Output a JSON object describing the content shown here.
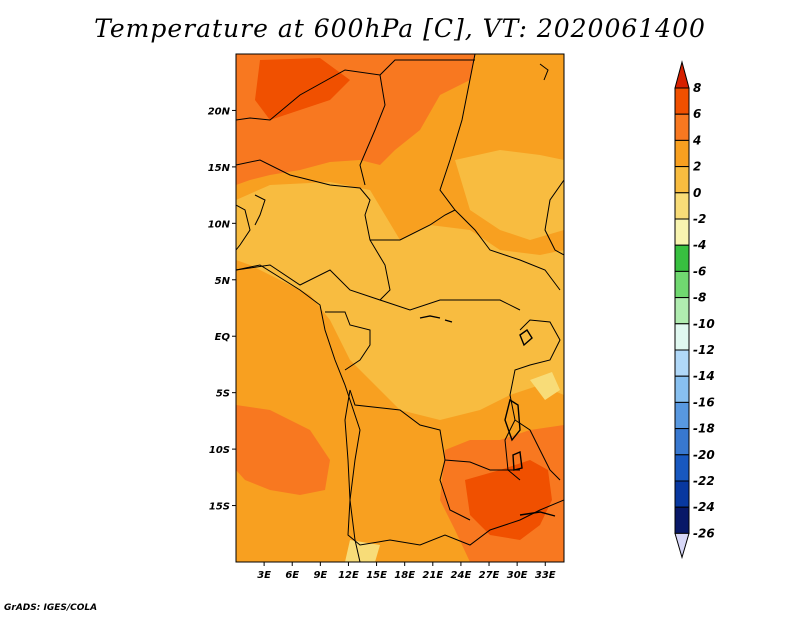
{
  "title": "Temperature at 600hPa [C], VT: 2020061400",
  "credit": "GrADS: IGES/COLA",
  "map": {
    "lat_ticks": [
      {
        "lat": 20,
        "label": "20N"
      },
      {
        "lat": 15,
        "label": "15N"
      },
      {
        "lat": 10,
        "label": "10N"
      },
      {
        "lat": 5,
        "label": "5N"
      },
      {
        "lat": 0,
        "label": "EQ"
      },
      {
        "lat": -5,
        "label": "5S"
      },
      {
        "lat": -10,
        "label": "10S"
      },
      {
        "lat": -15,
        "label": "15S"
      }
    ],
    "lon_ticks": [
      {
        "lon": 3,
        "label": "3E"
      },
      {
        "lon": 6,
        "label": "6E"
      },
      {
        "lon": 9,
        "label": "9E"
      },
      {
        "lon": 12,
        "label": "12E"
      },
      {
        "lon": 15,
        "label": "15E"
      },
      {
        "lon": 18,
        "label": "18E"
      },
      {
        "lon": 21,
        "label": "21E"
      },
      {
        "lon": 24,
        "label": "24E"
      },
      {
        "lon": 27,
        "label": "27E"
      },
      {
        "lon": 30,
        "label": "30E"
      },
      {
        "lon": 33,
        "label": "33E"
      }
    ],
    "lat_range": [
      -20,
      25
    ],
    "lon_range": [
      0,
      35
    ]
  },
  "colorbar": {
    "labels": [
      "8",
      "6",
      "4",
      "2",
      "0",
      "-2",
      "-4",
      "-6",
      "-8",
      "-10",
      "-12",
      "-14",
      "-16",
      "-18",
      "-20",
      "-22",
      "-24",
      "-26"
    ],
    "colors": [
      "#d62000",
      "#f05000",
      "#f87820",
      "#f8a020",
      "#f8bc40",
      "#f8dc78",
      "#f8f4b0",
      "#38c040",
      "#70d870",
      "#b0ecb0",
      "#e0f8f0",
      "#b0d8f8",
      "#88c0f0",
      "#5898e0",
      "#3878d0",
      "#1858c0",
      "#0838a0",
      "#081868",
      "#d8d8f8"
    ]
  }
}
